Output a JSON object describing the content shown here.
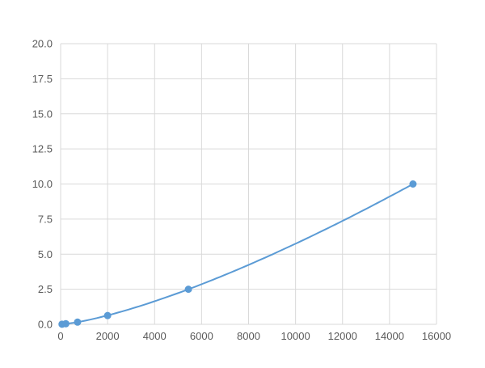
{
  "chart_data": {
    "type": "scatter",
    "title": "",
    "xlabel": "",
    "ylabel": "",
    "xlim": [
      0,
      16000
    ],
    "ylim": [
      0,
      20
    ],
    "grid": true,
    "x_ticks": [
      "0",
      "2000",
      "4000",
      "6000",
      "8000",
      "10000",
      "12000",
      "14000",
      "16000"
    ],
    "y_ticks": [
      "0.0",
      "2.5",
      "5.0",
      "7.5",
      "10.0",
      "12.5",
      "15.0",
      "17.5",
      "20.0"
    ],
    "series": [
      {
        "x": [
          60,
          220,
          720,
          2000,
          5440,
          15000
        ],
        "y": [
          0.01,
          0.04,
          0.156,
          0.625,
          2.5,
          10.0
        ],
        "color": "#5b9bd5",
        "trendline": "smooth"
      }
    ]
  }
}
